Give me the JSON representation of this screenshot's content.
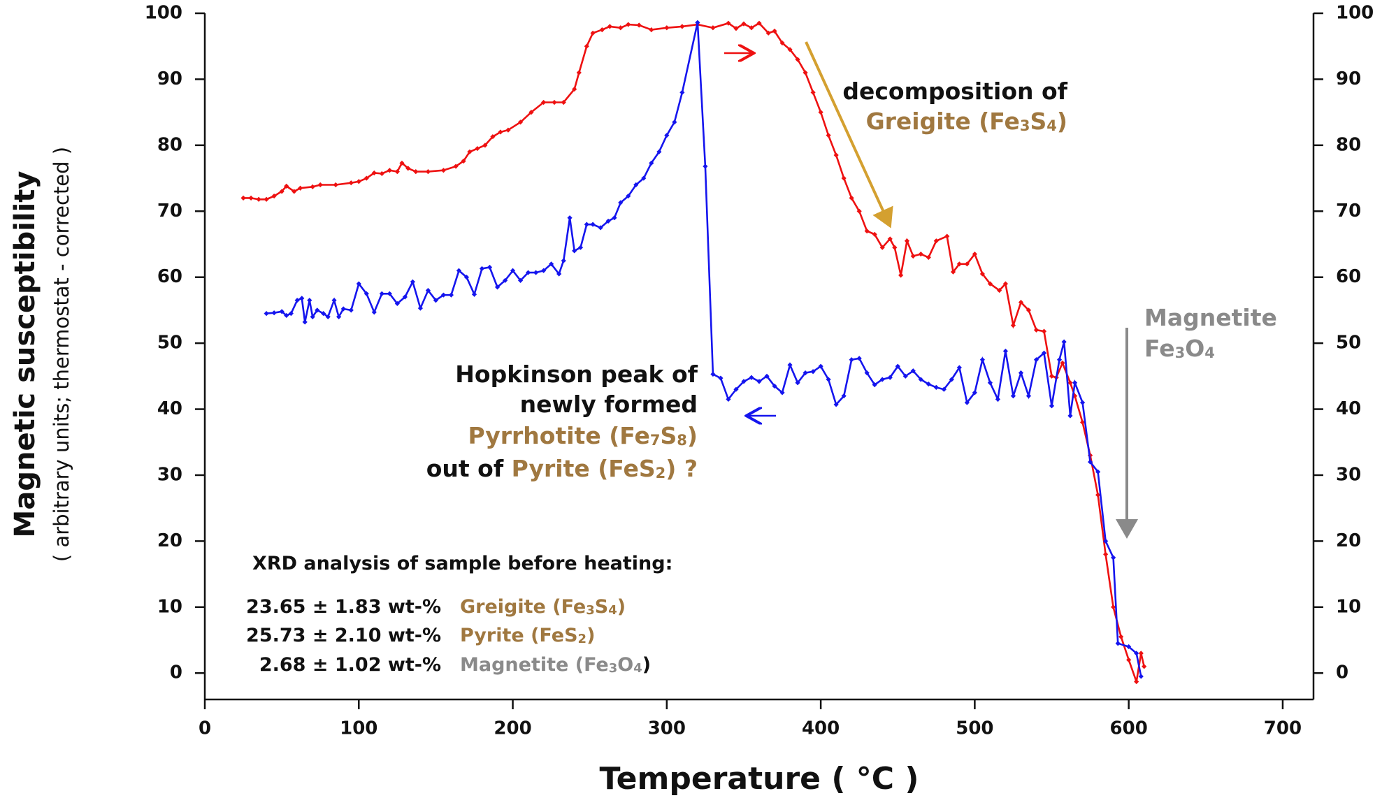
{
  "chart_data": {
    "type": "line",
    "xlabel": "Temperature ( °C )",
    "ylabel": "Magnetic susceptibility",
    "ylabel_sub": "( arbitrary units; thermostat - corrected )",
    "xlim": [
      0,
      720
    ],
    "xticks": [
      0,
      100,
      200,
      300,
      400,
      500,
      600,
      700
    ],
    "ylim": [
      -4,
      100
    ],
    "yticks": [
      0,
      10,
      20,
      30,
      40,
      50,
      60,
      70,
      80,
      90,
      100
    ],
    "y2lim": [
      -4,
      100
    ],
    "y2ticks": [
      0,
      10,
      20,
      30,
      40,
      50,
      60,
      70,
      80,
      90,
      100
    ],
    "grid": false,
    "series": [
      {
        "color": "#ee1111",
        "x": [
          25,
          30,
          35,
          40,
          45,
          50,
          53,
          58,
          62,
          70,
          75,
          85,
          95,
          100,
          105,
          110,
          115,
          120,
          125,
          128,
          132,
          137,
          145,
          155,
          163,
          168,
          172,
          177,
          182,
          187,
          192,
          197,
          205,
          212,
          220,
          227,
          233,
          240,
          243,
          248,
          252,
          258,
          263,
          270,
          275,
          282,
          290,
          300,
          310,
          320,
          330,
          340,
          345,
          350,
          355,
          360,
          366,
          370,
          375,
          380,
          385,
          390,
          395,
          400,
          405,
          410,
          415,
          420,
          425,
          430,
          435,
          440,
          445,
          448,
          452,
          456,
          460,
          465,
          470,
          475,
          482,
          486,
          490,
          495,
          500,
          505,
          510,
          516,
          520,
          525,
          530,
          535,
          540,
          545,
          550,
          553,
          557,
          562,
          565,
          570,
          575,
          580,
          585,
          590,
          595,
          600,
          605,
          608,
          610
        ],
        "values": [
          72,
          72,
          71.8,
          71.8,
          72.3,
          73,
          73.8,
          73,
          73.5,
          73.7,
          74,
          74,
          74.3,
          74.5,
          75,
          75.8,
          75.7,
          76.2,
          76,
          77.3,
          76.5,
          76,
          76,
          76.2,
          76.8,
          77.6,
          79,
          79.5,
          80,
          81.3,
          82,
          82.3,
          83.5,
          85,
          86.5,
          86.5,
          86.5,
          88.5,
          91,
          95,
          97,
          97.5,
          98,
          97.8,
          98.3,
          98.2,
          97.5,
          97.8,
          98,
          98.3,
          97.8,
          98.5,
          97.7,
          98.4,
          97.8,
          98.5,
          97,
          97.3,
          95.5,
          94.5,
          93,
          91,
          88,
          85,
          81.5,
          78.5,
          75,
          72,
          70,
          67,
          66.5,
          64.5,
          65.8,
          64.5,
          60.3,
          65.5,
          63.2,
          63.5,
          63,
          65.5,
          66.2,
          60.8,
          62,
          62,
          63.5,
          60.5,
          59,
          58,
          59,
          52.7,
          56.2,
          55,
          52,
          51.8,
          45,
          44.8,
          47,
          44,
          42,
          38,
          33,
          27,
          18,
          10,
          5.5,
          2,
          -1.3,
          3,
          1
        ]
      },
      {
        "color": "#1515ee",
        "x": [
          40,
          45,
          50,
          53,
          56,
          60,
          63,
          65,
          68,
          70,
          73,
          77,
          80,
          84,
          87,
          90,
          95,
          100,
          105,
          110,
          115,
          120,
          125,
          130,
          135,
          140,
          145,
          150,
          155,
          160,
          165,
          170,
          175,
          180,
          185,
          190,
          195,
          200,
          205,
          210,
          215,
          220,
          225,
          230,
          233,
          237,
          240,
          244,
          248,
          252,
          257,
          262,
          266,
          270,
          275,
          280,
          285,
          290,
          295,
          300,
          305,
          310,
          320,
          325,
          330,
          335,
          340,
          345,
          350,
          355,
          360,
          365,
          370,
          375,
          380,
          385,
          390,
          395,
          400,
          405,
          410,
          415,
          420,
          425,
          430,
          435,
          440,
          445,
          450,
          455,
          460,
          465,
          470,
          475,
          480,
          485,
          490,
          495,
          500,
          505,
          510,
          515,
          520,
          525,
          530,
          535,
          540,
          545,
          550,
          555,
          558,
          562,
          565,
          570,
          575,
          580,
          585,
          590,
          593,
          600,
          605,
          608
        ],
        "values": [
          54.5,
          54.6,
          54.8,
          54.2,
          54.5,
          56.5,
          56.8,
          53.2,
          56.5,
          54,
          55,
          54.5,
          54,
          56.5,
          54,
          55.2,
          55,
          59,
          57.5,
          54.7,
          57.5,
          57.5,
          56,
          57,
          59.3,
          55.3,
          58,
          56.5,
          57.3,
          57.3,
          61,
          60,
          57.4,
          61.3,
          61.5,
          58.5,
          59.5,
          61,
          59.5,
          60.7,
          60.7,
          61,
          62,
          60.5,
          62.5,
          69,
          64,
          64.5,
          68,
          68,
          67.5,
          68.5,
          69,
          71.3,
          72.3,
          74,
          75,
          77.3,
          79,
          81.5,
          83.5,
          88,
          98.6,
          76.8,
          45.3,
          44.7,
          41.5,
          43,
          44.2,
          44.8,
          44.2,
          45,
          43.5,
          42.5,
          46.7,
          44,
          45.5,
          45.7,
          46.5,
          44.5,
          40.7,
          42,
          47.5,
          47.7,
          45.5,
          43.7,
          44.5,
          44.8,
          46.5,
          45,
          45.8,
          44.5,
          43.8,
          43.3,
          43,
          44.5,
          46.3,
          41,
          42.5,
          47.5,
          44,
          41.5,
          48.8,
          42,
          45.5,
          42,
          47.5,
          48.5,
          40.5,
          47.5,
          50.2,
          39,
          44,
          41,
          32,
          30.5,
          20,
          17.5,
          4.5,
          4,
          3,
          -0.5
        ]
      }
    ],
    "annotations": [
      {
        "spans": [
          {
            "text": "decomposition of"
          }
        ]
      },
      {
        "spans": [
          {
            "text": "Greigite (Fe",
            "color": "#a07840"
          },
          {
            "text": "3",
            "sub": true,
            "color": "#a07840"
          },
          {
            "text": "S",
            "color": "#a07840"
          },
          {
            "text": "4",
            "sub": true,
            "color": "#a07840"
          },
          {
            "text": ")",
            "color": "#a07840"
          }
        ]
      },
      {
        "spans": [
          {
            "text": "Magnetite",
            "color": "#8a8a8a"
          }
        ]
      },
      {
        "spans": [
          {
            "text": "Fe",
            "color": "#8a8a8a"
          },
          {
            "text": "3",
            "sub": true,
            "color": "#8a8a8a"
          },
          {
            "text": "O",
            "color": "#8a8a8a"
          },
          {
            "text": "4",
            "sub": true,
            "color": "#8a8a8a"
          }
        ]
      },
      {
        "spans": [
          {
            "text": "Hopkinson peak of"
          }
        ]
      },
      {
        "spans": [
          {
            "text": "newly formed"
          }
        ]
      },
      {
        "spans": [
          {
            "text": "Pyrrhotite (Fe",
            "color": "#a07840"
          },
          {
            "text": "7",
            "sub": true,
            "color": "#a07840"
          },
          {
            "text": "S",
            "color": "#a07840"
          },
          {
            "text": "8",
            "sub": true,
            "color": "#a07840"
          },
          {
            "text": ")",
            "color": "#a07840"
          }
        ]
      },
      {
        "spans": [
          {
            "text": "out of "
          },
          {
            "text": "Pyrite (FeS",
            "color": "#a07840"
          },
          {
            "text": "2",
            "sub": true,
            "color": "#a07840"
          },
          {
            "text": ") ?",
            "color": "#a07840"
          }
        ]
      },
      {
        "spans": [
          {
            "text": "XRD analysis of sample before heating:"
          }
        ]
      },
      {
        "spans": [
          {
            "text": "23.65 ± 1.83 wt-%"
          }
        ]
      },
      {
        "spans": [
          {
            "text": "Greigite (Fe",
            "color": "#a07840"
          },
          {
            "text": "3",
            "sub": true,
            "color": "#a07840"
          },
          {
            "text": "S",
            "color": "#a07840"
          },
          {
            "text": "4",
            "sub": true,
            "color": "#a07840"
          },
          {
            "text": ")",
            "color": "#a07840"
          }
        ]
      },
      {
        "spans": [
          {
            "text": "25.73 ± 2.10 wt-%"
          }
        ]
      },
      {
        "spans": [
          {
            "text": "Pyrite (FeS",
            "color": "#a07840"
          },
          {
            "text": "2",
            "sub": true,
            "color": "#a07840"
          },
          {
            "text": ")",
            "color": "#a07840"
          }
        ]
      },
      {
        "spans": [
          {
            "text": "2.68 ± 1.02 wt-%"
          }
        ]
      },
      {
        "spans": [
          {
            "text": "Magnetite (Fe",
            "color": "#8a8a8a"
          },
          {
            "text": "3",
            "sub": true,
            "color": "#8a8a8a"
          },
          {
            "text": "O",
            "color": "#8a8a8a"
          },
          {
            "text": "4",
            "sub": true,
            "color": "#8a8a8a"
          },
          {
            "text": ")"
          }
        ]
      }
    ]
  }
}
